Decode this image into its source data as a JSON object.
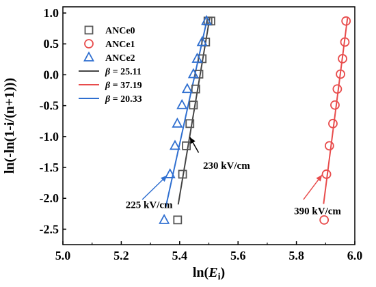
{
  "chart_data": {
    "type": "scatter",
    "xlabel_prefix": "ln(",
    "xlabel_var": "E",
    "xlabel_sub": "i",
    "xlabel_suffix": ")",
    "ylabel": "ln(-ln(1-i/(n+1)))",
    "xlim": [
      5.0,
      6.0
    ],
    "ylim": [
      -2.75,
      1.1
    ],
    "xticks": [
      5.0,
      5.2,
      5.4,
      5.6,
      5.8,
      6.0
    ],
    "xtick_labels": [
      "5.0",
      "5.2",
      "5.4",
      "5.6",
      "5.8",
      "6.0"
    ],
    "yticks": [
      1.0,
      0.5,
      0.0,
      -0.5,
      -1.0,
      -1.5,
      -2.0,
      -2.5
    ],
    "ytick_labels": [
      "1.0",
      "0.5",
      "0.0",
      "-0.5",
      "-1.0",
      "-1.5",
      "-2.0",
      "-2.5"
    ],
    "grid": false,
    "legend_position": "top-left",
    "series": [
      {
        "name": "ANCe0",
        "marker": "square",
        "color": "#555555",
        "x": [
          5.393,
          5.41,
          5.423,
          5.435,
          5.447,
          5.455,
          5.466,
          5.477,
          5.489,
          5.497,
          5.507
        ],
        "y": [
          -2.35,
          -1.61,
          -1.15,
          -0.79,
          -0.49,
          -0.23,
          0.01,
          0.26,
          0.53,
          0.87,
          0.87
        ]
      },
      {
        "name": "ANCe1",
        "marker": "circle",
        "color": "#e84c4c",
        "x": [
          5.895,
          5.903,
          5.913,
          5.925,
          5.932,
          5.94,
          5.951,
          5.958,
          5.966,
          5.97
        ],
        "y": [
          -2.35,
          -1.61,
          -1.15,
          -0.79,
          -0.49,
          -0.23,
          0.01,
          0.26,
          0.53,
          0.87
        ]
      },
      {
        "name": "ANCe2",
        "marker": "triangle",
        "color": "#2f6fd0",
        "x": [
          5.347,
          5.367,
          5.384,
          5.392,
          5.408,
          5.426,
          5.447,
          5.46,
          5.477,
          5.492
        ],
        "y": [
          -2.35,
          -1.61,
          -1.15,
          -0.79,
          -0.49,
          -0.23,
          0.01,
          0.26,
          0.53,
          0.87
        ]
      }
    ],
    "fit_lines": [
      {
        "label_prefix": "β",
        "label_value": " = 25.11",
        "color": "#444444",
        "x": [
          5.395,
          5.503
        ],
        "y": [
          -2.1,
          0.92
        ]
      },
      {
        "label_prefix": "β",
        "label_value": " = 37.19",
        "color": "#e84c4c",
        "x": [
          5.893,
          5.975
        ],
        "y": [
          -2.09,
          0.92
        ]
      },
      {
        "label_prefix": "β",
        "label_value": " = 20.33",
        "color": "#2f6fd0",
        "x": [
          5.352,
          5.495
        ],
        "y": [
          -2.15,
          0.92
        ]
      }
    ],
    "annotations": [
      {
        "text": "225 kV/cm",
        "color": "#2f6fd0",
        "text_x": 5.215,
        "text_y": -2.16,
        "arrow_from": [
          5.272,
          -2.02
        ],
        "arrow_to": [
          5.357,
          -1.63
        ]
      },
      {
        "text": "230 kV/cm",
        "color": "#000000",
        "text_x": 5.48,
        "text_y": -1.52,
        "arrow_from": [
          5.465,
          -1.26
        ],
        "arrow_to": [
          5.435,
          -1.01
        ]
      },
      {
        "text": "390 kV/cm",
        "color": "#e84c4c",
        "text_x": 5.792,
        "text_y": -2.26,
        "arrow_from": [
          5.824,
          -2.02
        ],
        "arrow_to": [
          5.888,
          -1.62
        ]
      }
    ]
  }
}
